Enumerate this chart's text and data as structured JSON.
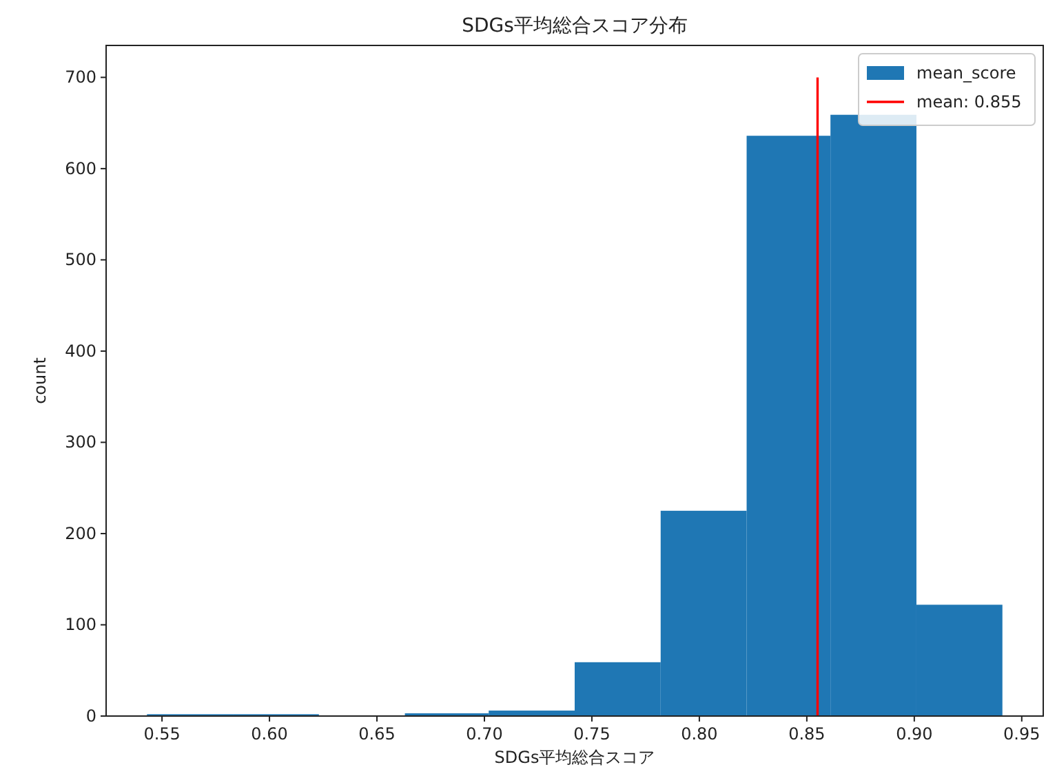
{
  "chart_data": {
    "type": "histogram",
    "title": "SDGs平均総合スコア分布",
    "xlabel": "SDGs平均総合スコア",
    "ylabel": "count",
    "bins": [
      0.543,
      0.583,
      0.623,
      0.663,
      0.702,
      0.742,
      0.782,
      0.822,
      0.861,
      0.901,
      0.941
    ],
    "series": [
      {
        "name": "mean_score",
        "color": "#1f77b4",
        "values": [
          2,
          2,
          0,
          3,
          6,
          59,
          225,
          636,
          659,
          122
        ]
      },
      {
        "type": "line",
        "name": "mean: 0.855",
        "color": "#ff0000",
        "x": [
          0.855,
          0.855
        ],
        "values": [
          0,
          700
        ]
      }
    ],
    "xlim": [
      0.524,
      0.96
    ],
    "ylim": [
      0,
      735
    ],
    "xticks": [
      0.55,
      {
        "value": 0.6,
        "label": "0.60"
      },
      0.65,
      {
        "value": 0.7,
        "label": "0.70"
      },
      0.75,
      {
        "value": 0.8,
        "label": "0.80"
      },
      0.85,
      {
        "value": 0.9,
        "label": "0.90"
      },
      0.95
    ],
    "yticks": [
      0,
      100,
      200,
      300,
      400,
      500,
      600,
      700
    ],
    "legend": "top right"
  }
}
